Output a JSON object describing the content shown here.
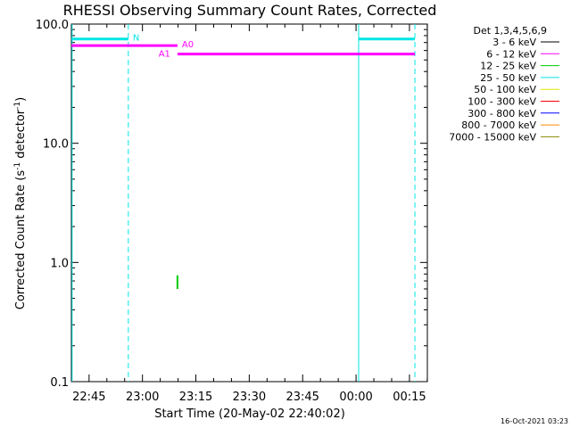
{
  "chart_data": {
    "type": "line",
    "title": "RHESSI Observing Summary Count Rates, Corrected",
    "xlabel": "Start Time (20-May-02 22:40:02)",
    "ylabel_main": "Corrected Count Rate (s",
    "ylabel_sup1": "-1",
    "ylabel_mid": " detector",
    "ylabel_sup2": "-1",
    "ylabel_end": ")",
    "y_scale": "log",
    "ylim": [
      0.1,
      100.0
    ],
    "xlim_minutes": [
      0,
      100
    ],
    "x_ticks": [
      {
        "minute": 4.97,
        "label": "22:45"
      },
      {
        "minute": 19.97,
        "label": "23:00"
      },
      {
        "minute": 34.97,
        "label": "23:15"
      },
      {
        "minute": 49.97,
        "label": "23:30"
      },
      {
        "minute": 64.97,
        "label": "23:45"
      },
      {
        "minute": 79.97,
        "label": "00:00"
      },
      {
        "minute": 94.97,
        "label": "00:15"
      }
    ],
    "y_ticks": [
      {
        "value": 0.1,
        "label": "0.1"
      },
      {
        "value": 1.0,
        "label": "1.0"
      },
      {
        "value": 10.0,
        "label": "10.0"
      },
      {
        "value": 100.0,
        "label": "100.0"
      }
    ],
    "legend_title": "Det 1,3,4,5,6,9",
    "legend": [
      {
        "label": "3 - 6 keV",
        "color": "#000000"
      },
      {
        "label": "6 - 12 keV",
        "color": "#ff00ff"
      },
      {
        "label": "12 - 25 keV",
        "color": "#00cc00"
      },
      {
        "label": "25 - 50 keV",
        "color": "#00e5e5"
      },
      {
        "label": "50 - 100 keV",
        "color": "#e5e500"
      },
      {
        "label": "100 - 300 keV",
        "color": "#ff0000"
      },
      {
        "label": "300 - 800 keV",
        "color": "#0000ff"
      },
      {
        "label": "800 - 7000 keV",
        "color": "#ff8800"
      },
      {
        "label": "7000 - 15000 keV",
        "color": "#888800"
      }
    ],
    "flag_bars": [
      {
        "label": "N",
        "color": "#00e5e5",
        "y": 75,
        "x_start": 0,
        "x_end": 16.0
      },
      {
        "label": "",
        "color": "#00e5e5",
        "y": 75,
        "x_start": 80.7,
        "x_end": 96.5
      },
      {
        "label": "A0",
        "color": "#ff00ff",
        "y": 66,
        "x_start": 0,
        "x_end": 29.8
      },
      {
        "label": "A1",
        "color": "#ff00ff",
        "y": 56,
        "x_start": 29.8,
        "x_end": 96.5
      }
    ],
    "vlines_solid": [
      {
        "minute": 0.2,
        "color": "#00e5e5"
      },
      {
        "minute": 80.7,
        "color": "#00e5e5"
      }
    ],
    "vlines_dashed": [
      {
        "minute": 16.0,
        "color": "#00e5e5"
      },
      {
        "minute": 96.5,
        "color": "#00e5e5"
      }
    ],
    "series": [
      {
        "name": "12 - 25 keV",
        "color": "#00cc00",
        "x": [
          29.8,
          29.8
        ],
        "y": [
          0.6,
          0.78
        ]
      }
    ],
    "footer_timestamp": "16-Oct-2021 03:23"
  }
}
